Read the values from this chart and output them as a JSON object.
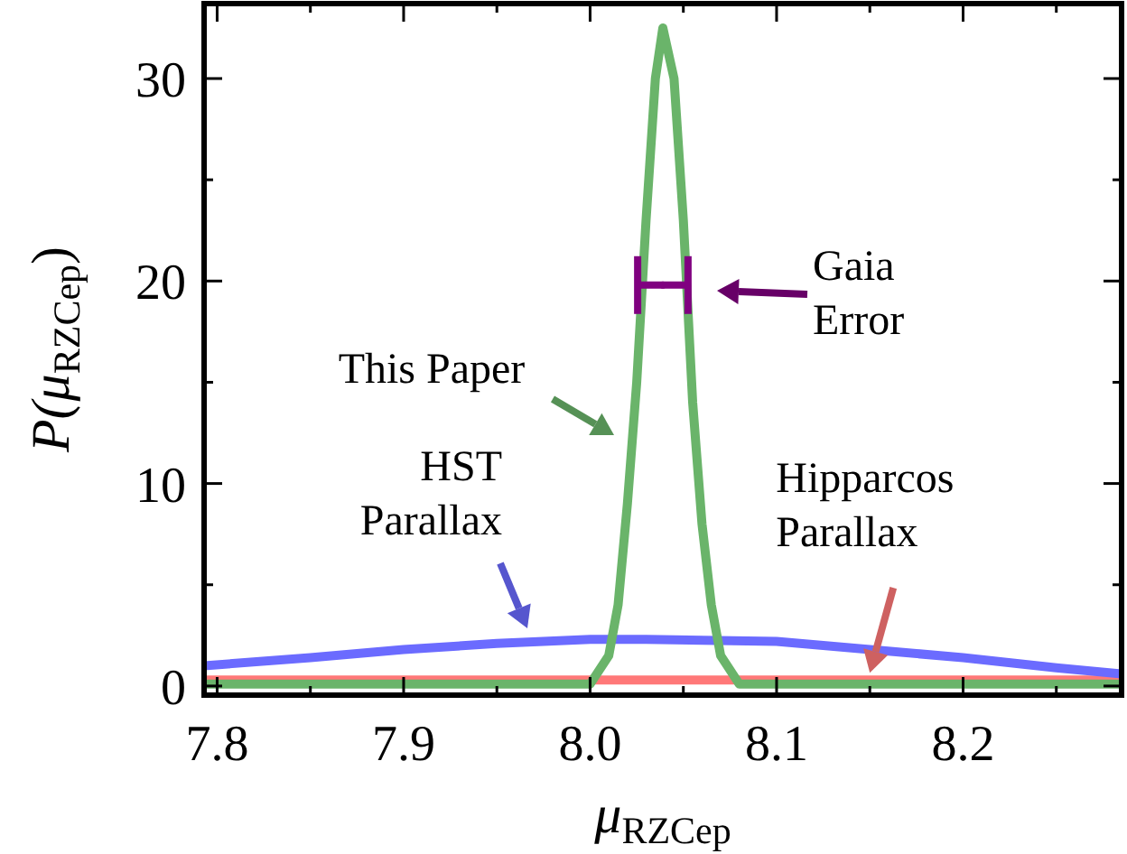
{
  "chart_data": {
    "type": "line",
    "xlabel": "μ$_{RZCep}$",
    "ylabel": "P(μ$_{RZCep}$)",
    "xlim": [
      7.793,
      8.285
    ],
    "ylim": [
      -0.45,
      33.7
    ],
    "xticks": [
      {
        "value": 7.8,
        "label": "7.8"
      },
      {
        "value": 7.85,
        "label": null
      },
      {
        "value": 7.9,
        "label": "7.9"
      },
      {
        "value": 7.95,
        "label": null
      },
      {
        "value": 8.0,
        "label": "8.0"
      },
      {
        "value": 8.05,
        "label": null
      },
      {
        "value": 8.1,
        "label": "8.1"
      },
      {
        "value": 8.15,
        "label": null
      },
      {
        "value": 8.2,
        "label": "8.2"
      },
      {
        "value": 8.25,
        "label": null
      }
    ],
    "yticks": [
      0,
      {
        "value": 5,
        "label": null
      },
      10,
      {
        "value": 15,
        "label": null
      },
      20,
      {
        "value": 25,
        "label": null
      },
      30
    ],
    "grid": false,
    "series": [
      {
        "color": "#ff7878",
        "x": [
          7.793,
          7.9,
          8.0,
          8.1,
          8.2,
          8.285
        ],
        "values": [
          0.3,
          0.3,
          0.3,
          0.3,
          0.3,
          0.3
        ]
      },
      {
        "color": "#6b6bff",
        "x": [
          7.793,
          7.85,
          7.9,
          7.95,
          8.0,
          8.03,
          8.1,
          8.15,
          8.2,
          8.25,
          8.285
        ],
        "values": [
          1.0,
          1.4,
          1.8,
          2.1,
          2.3,
          2.3,
          2.2,
          1.8,
          1.4,
          0.9,
          0.6
        ]
      },
      {
        "color": "#6ab46a",
        "x": [
          7.793,
          7.95,
          8.0,
          8.01,
          8.015,
          8.02,
          8.025,
          8.03,
          8.035,
          8.039,
          8.045,
          8.05,
          8.055,
          8.06,
          8.065,
          8.07,
          8.08,
          8.285
        ],
        "values": [
          0.1,
          0.1,
          0.1,
          1.5,
          4,
          9,
          15,
          23,
          30,
          32.5,
          30,
          23,
          14,
          8,
          4,
          1.5,
          0.1,
          0.1
        ]
      },
      {
        "type": "scatter",
        "color": "#800080",
        "x": [
          8.039
        ],
        "values": [
          19.8
        ],
        "xerrors": [
          0.0135
        ]
      }
    ],
    "annotations": [
      {
        "text": "Hipparcos\nParallax",
        "x": 8.15,
        "y": 0.3
      },
      "HST\nParallax",
      "This Paper",
      "Gaia\nError"
    ]
  }
}
